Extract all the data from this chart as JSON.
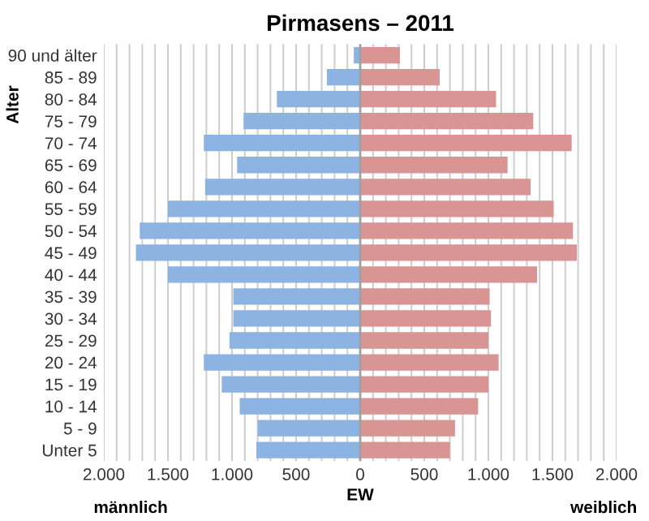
{
  "chart_data": {
    "type": "bar",
    "orientation": "horizontal",
    "title": "Pirmasens – 2011",
    "xlabel": "EW",
    "ylabel": "Alter",
    "categories": [
      "90 und älter",
      "85 - 89",
      "80 - 84",
      "75 - 79",
      "70 - 74",
      "65 - 69",
      "60 - 64",
      "55 - 59",
      "50 - 54",
      "45 - 49",
      "40 - 44",
      "35 - 39",
      "30 - 34",
      "25 - 29",
      "20 - 24",
      "15 - 19",
      "10 - 14",
      "5 - 9",
      "Unter 5"
    ],
    "series": [
      {
        "color": "#8db3e2",
        "values": [
          -50,
          -260,
          -650,
          -910,
          -1220,
          -960,
          -1210,
          -1500,
          -1720,
          -1750,
          -1500,
          -990,
          -990,
          -1020,
          -1220,
          -1080,
          -940,
          -800,
          -810
        ]
      },
      {
        "color": "#d99594",
        "values": [
          310,
          620,
          1060,
          1350,
          1650,
          1150,
          1330,
          1510,
          1660,
          1690,
          1380,
          1010,
          1020,
          1000,
          1080,
          1000,
          920,
          740,
          700
        ]
      }
    ],
    "stacked": true,
    "xlim": [
      -2000,
      2000
    ],
    "xticks": [
      {
        "value": -2000,
        "label": "2.000"
      },
      {
        "value": -1900,
        "label": null
      },
      {
        "value": -1800,
        "label": null
      },
      {
        "value": -1700,
        "label": null
      },
      {
        "value": -1600,
        "label": null
      },
      {
        "value": -1500,
        "label": "1.500"
      },
      {
        "value": -1400,
        "label": null
      },
      {
        "value": -1300,
        "label": null
      },
      {
        "value": -1200,
        "label": null
      },
      {
        "value": -1100,
        "label": null
      },
      {
        "value": -1000,
        "label": "1.000"
      },
      {
        "value": -900,
        "label": null
      },
      {
        "value": -800,
        "label": null
      },
      {
        "value": -700,
        "label": null
      },
      {
        "value": -600,
        "label": null
      },
      {
        "value": -500,
        "label": "500"
      },
      {
        "value": -400,
        "label": null
      },
      {
        "value": -300,
        "label": null
      },
      {
        "value": -200,
        "label": null
      },
      {
        "value": -100,
        "label": null
      },
      0,
      {
        "value": 100,
        "label": null
      },
      {
        "value": 200,
        "label": null
      },
      {
        "value": 300,
        "label": null
      },
      {
        "value": 400,
        "label": null
      },
      500,
      {
        "value": 600,
        "label": null
      },
      {
        "value": 700,
        "label": null
      },
      {
        "value": 800,
        "label": null
      },
      {
        "value": 900,
        "label": null
      },
      {
        "value": 1000,
        "label": "1.000"
      },
      {
        "value": 1100,
        "label": null
      },
      {
        "value": 1200,
        "label": null
      },
      {
        "value": 1300,
        "label": null
      },
      {
        "value": 1400,
        "label": null
      },
      {
        "value": 1500,
        "label": "1.500"
      },
      {
        "value": 1600,
        "label": null
      },
      {
        "value": 1700,
        "label": null
      },
      {
        "value": 1800,
        "label": null
      },
      {
        "value": 1900,
        "label": null
      },
      {
        "value": 2000,
        "label": "2.000"
      }
    ],
    "grid": "x",
    "ref_lines": [
      {
        "axis": "x",
        "value": 0,
        "color": "#a0a0a0"
      }
    ],
    "annotations": [
      "männlich",
      "weiblich"
    ]
  }
}
